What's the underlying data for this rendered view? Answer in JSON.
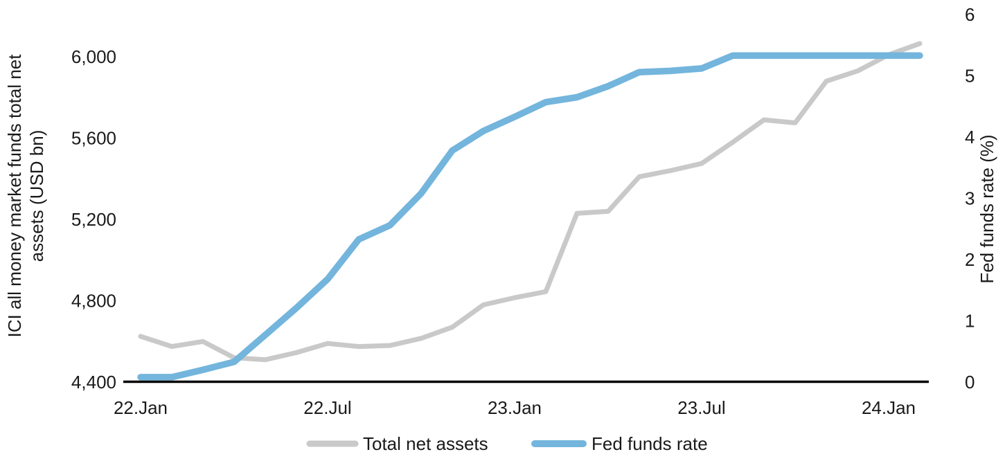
{
  "chart_data": {
    "type": "line",
    "months": [
      "2022-01",
      "2022-02",
      "2022-03",
      "2022-04",
      "2022-05",
      "2022-06",
      "2022-07",
      "2022-08",
      "2022-09",
      "2022-10",
      "2022-11",
      "2022-12",
      "2023-01",
      "2023-02",
      "2023-03",
      "2023-04",
      "2023-05",
      "2023-06",
      "2023-07",
      "2023-08",
      "2023-09",
      "2023-10",
      "2023-11",
      "2023-12",
      "2024-01",
      "2024-02"
    ],
    "x_tick_labels": [
      "22.Jan",
      "22.Jul",
      "23.Jan",
      "23.Jul",
      "24.Jan"
    ],
    "x_tick_indices": [
      0,
      6,
      12,
      18,
      24
    ],
    "series": [
      {
        "name": "Total net assets",
        "axis": "left",
        "color": "#C9C9C9",
        "values": [
          4625,
          4575,
          4600,
          4520,
          4510,
          4545,
          4590,
          4575,
          4580,
          4615,
          4670,
          4780,
          4815,
          4845,
          5230,
          5240,
          5410,
          5440,
          5475,
          5580,
          5690,
          5675,
          5880,
          5930,
          6010,
          6065
        ]
      },
      {
        "name": "Fed funds rate",
        "axis": "right",
        "color": "#73B5DC",
        "values": [
          0.08,
          0.08,
          0.2,
          0.33,
          0.77,
          1.21,
          1.68,
          2.33,
          2.56,
          3.08,
          3.78,
          4.1,
          4.33,
          4.57,
          4.65,
          4.83,
          5.06,
          5.08,
          5.12,
          5.33,
          5.33,
          5.33,
          5.33,
          5.33,
          5.33,
          5.33
        ]
      }
    ],
    "left_axis": {
      "label": "ICI all money market funds total net assets (USD bn)",
      "title_lines": [
        "ICI all money market funds total net",
        "assets (USD bn)"
      ],
      "range": [
        4400,
        6000
      ],
      "ticks": [
        6000,
        5600,
        5200,
        4800,
        4400
      ],
      "tick_labels": [
        "6,000",
        "5,600",
        "5,200",
        "4,800",
        "4,400"
      ]
    },
    "right_axis": {
      "label": "Fed funds rate (%)",
      "range": [
        0,
        6
      ],
      "ticks": [
        6,
        5,
        4,
        3,
        2,
        1,
        0
      ],
      "tick_labels": [
        "6",
        "5",
        "4",
        "3",
        "2",
        "1",
        "0"
      ]
    },
    "grid": false,
    "legend_position": "bottom",
    "axis_line_color": "#000000",
    "text_color": "#1a1a1a"
  },
  "legend": {
    "items": [
      {
        "label": "Total net assets",
        "color": "#C9C9C9"
      },
      {
        "label": "Fed funds rate",
        "color": "#73B5DC"
      }
    ]
  }
}
